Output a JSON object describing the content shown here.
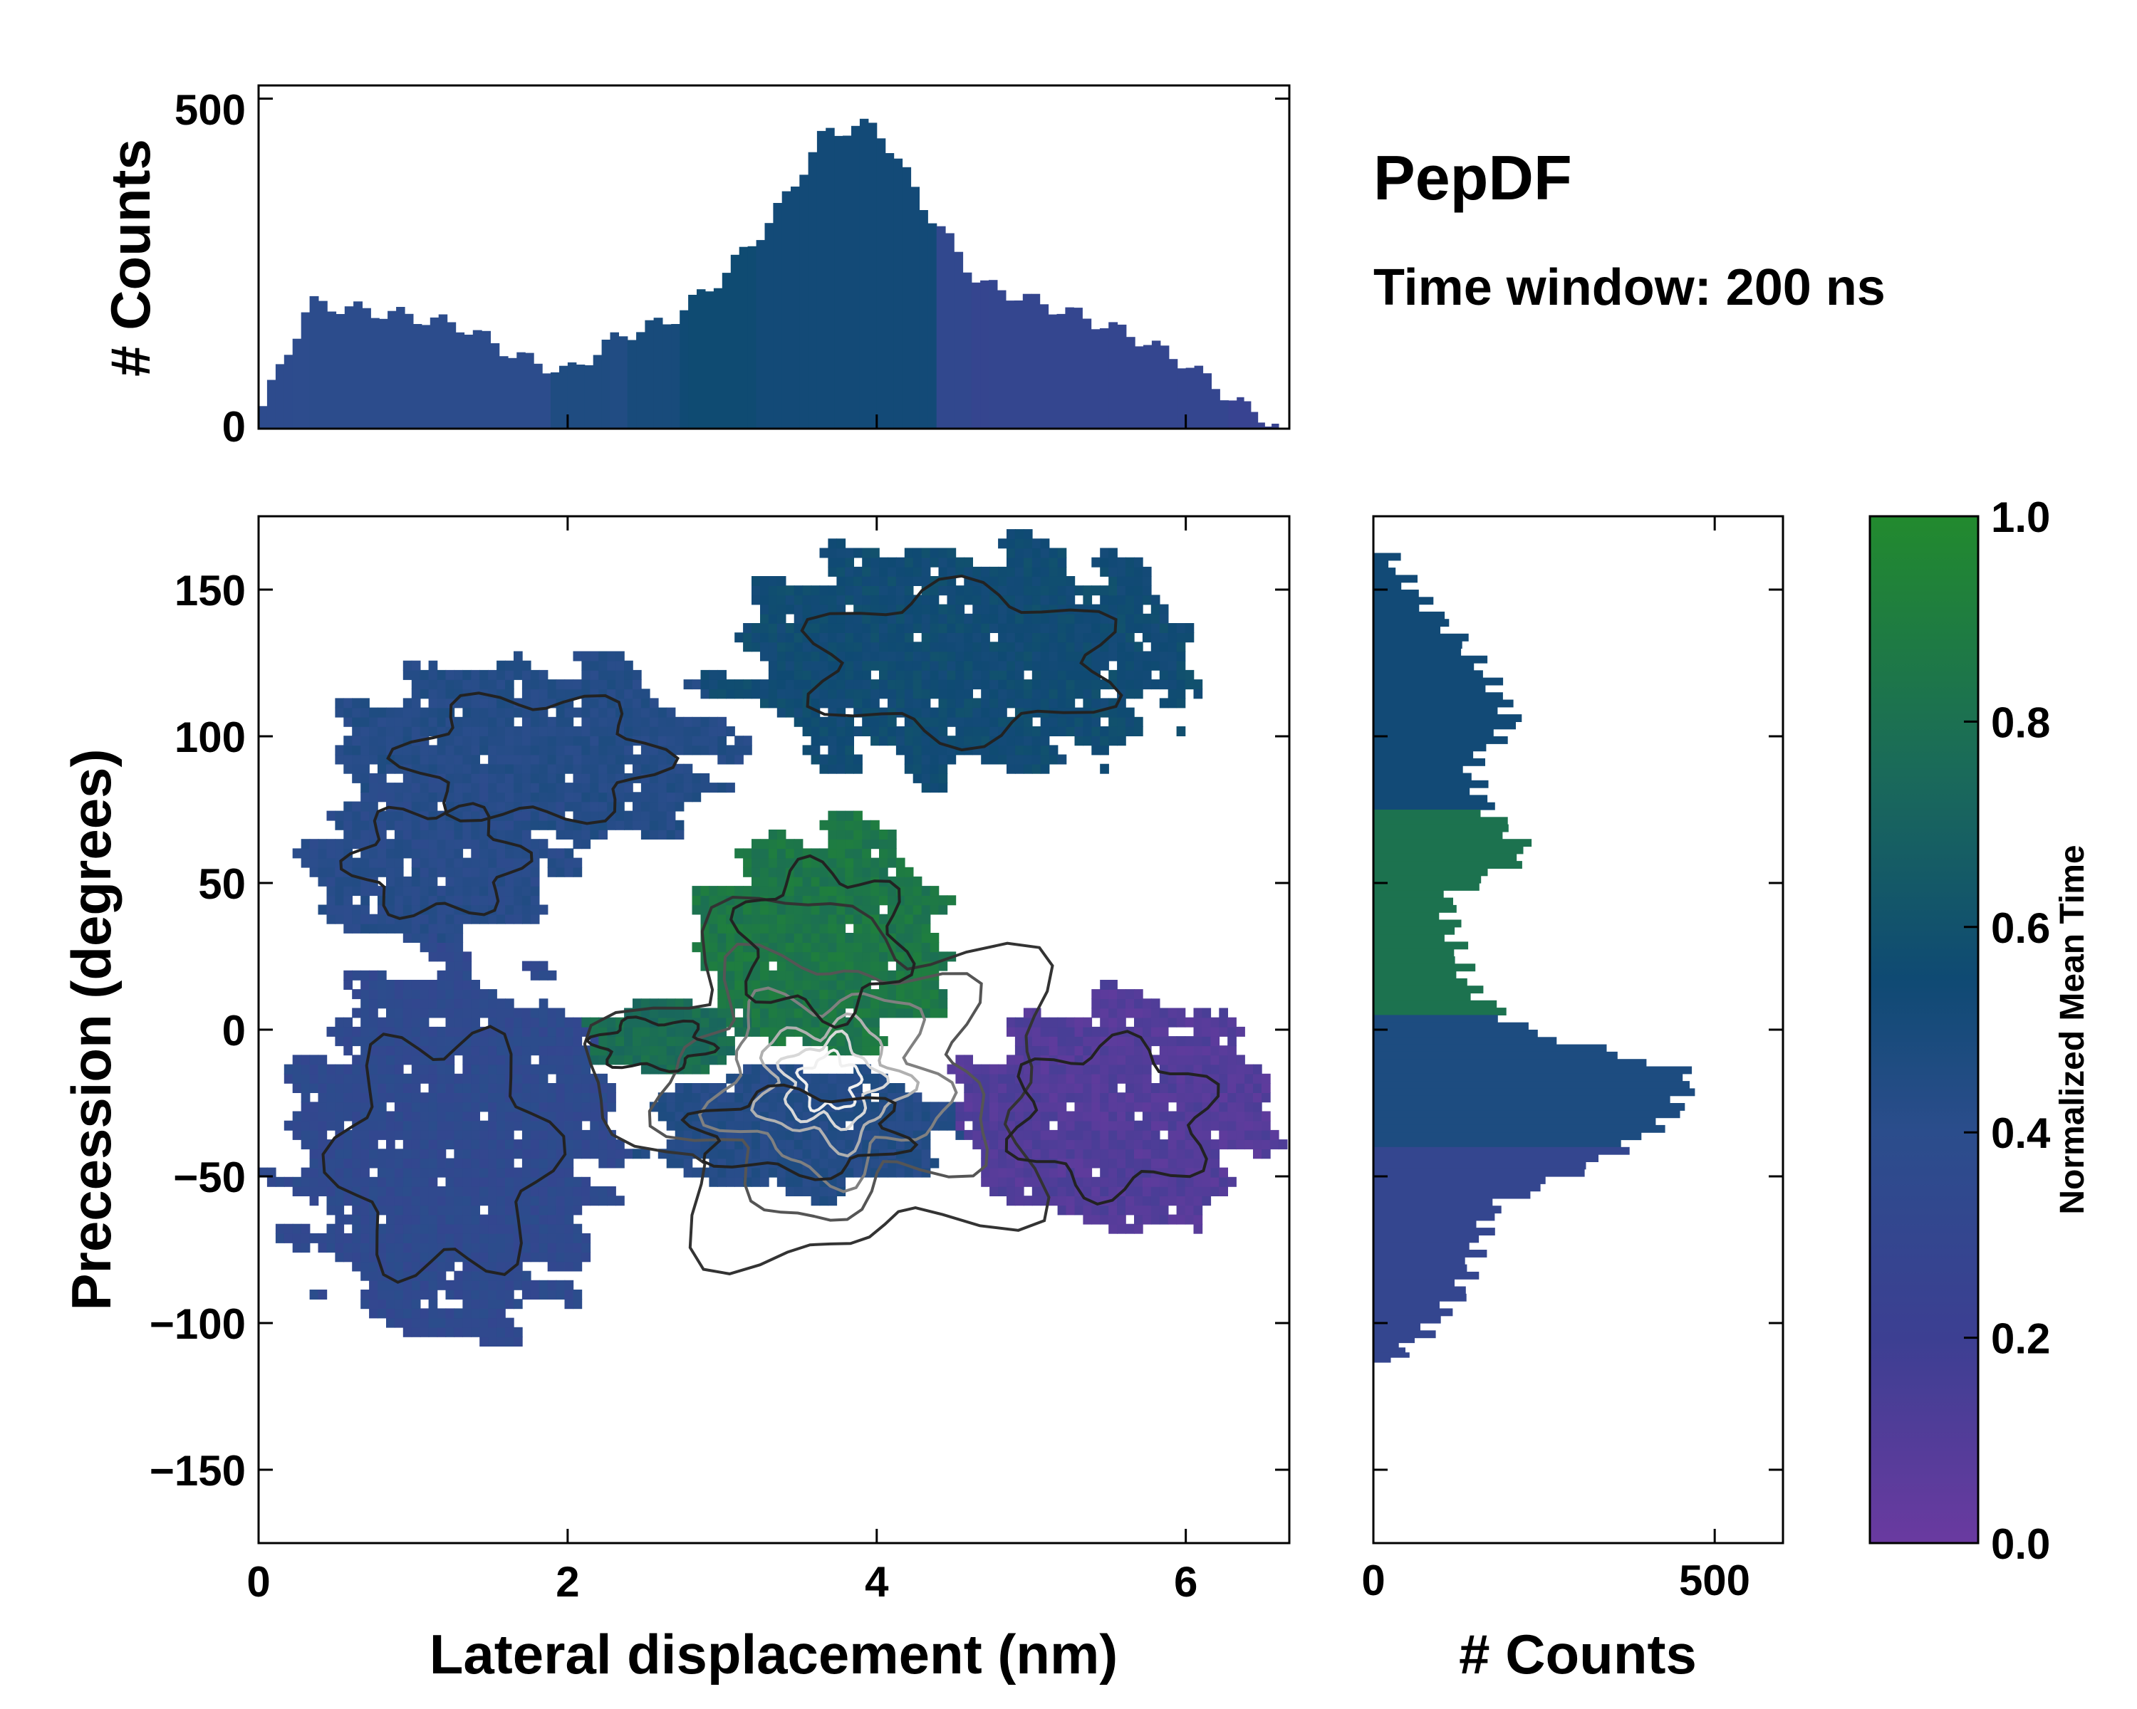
{
  "chart_data": {
    "type": "heatmap",
    "title": "PepDF",
    "subtitle": "Time window: 200 ns",
    "main": {
      "xlabel": "Lateral displacement (nm)",
      "ylabel": "Precession (degrees)",
      "xlim": [
        0,
        6.67
      ],
      "ylim": [
        -175,
        175
      ],
      "xticks": [
        0,
        2,
        4,
        6
      ],
      "xticklabels": [
        "0",
        "2",
        "4",
        "6"
      ],
      "yticks": [
        -150,
        -100,
        -50,
        0,
        50,
        100,
        150
      ],
      "yticklabels": [
        "−150",
        "−100",
        "−50",
        "0",
        "50",
        "100",
        "150"
      ],
      "regions": [
        {
          "name": "upper-left",
          "x": [
            0.35,
            3.2
          ],
          "y": [
            55,
            130
          ],
          "value": 0.45
        },
        {
          "name": "left-middle",
          "x": [
            0.2,
            2.1
          ],
          "y": [
            25,
            90
          ],
          "value": 0.42
        },
        {
          "name": "upper-right",
          "x": [
            2.8,
            6.3
          ],
          "y": [
            80,
            170
          ],
          "value": 0.6
        },
        {
          "name": "center-green",
          "x": [
            2.7,
            4.6
          ],
          "y": [
            -15,
            75
          ],
          "value": 0.88
        },
        {
          "name": "center-green-left",
          "x": [
            1.9,
            3.2
          ],
          "y": [
            -20,
            10
          ],
          "value": 0.82
        },
        {
          "name": "lower-left",
          "x": [
            0.0,
            2.4
          ],
          "y": [
            -115,
            30
          ],
          "value": 0.35
        },
        {
          "name": "lower-center",
          "x": [
            2.3,
            4.7
          ],
          "y": [
            -60,
            -10
          ],
          "value": 0.45
        },
        {
          "name": "right-purple",
          "x": [
            4.4,
            6.65
          ],
          "y": [
            -75,
            15
          ],
          "value": 0.1
        }
      ],
      "density_peak": {
        "x": 3.7,
        "y": -18
      }
    },
    "x_hist": {
      "ylabel": "# Counts",
      "ylim": [
        0,
        520
      ],
      "yticks": [
        0,
        500
      ],
      "yticklabels": [
        "0",
        "500"
      ],
      "bins_x": [
        0.0,
        0.33,
        0.67,
        1.0,
        1.33,
        1.67,
        2.0,
        2.33,
        2.67,
        3.0,
        3.33,
        3.67,
        4.0,
        4.33,
        4.67,
        5.0,
        5.33,
        5.67,
        6.0,
        6.33,
        6.6
      ],
      "counts": [
        20,
        190,
        180,
        170,
        155,
        110,
        85,
        140,
        165,
        230,
        320,
        450,
        460,
        330,
        220,
        195,
        170,
        140,
        100,
        40,
        5
      ]
    },
    "y_hist": {
      "xlabel": "# Counts",
      "xlim": [
        0,
        600
      ],
      "xticks": [
        0,
        500
      ],
      "xticklabels": [
        "0",
        "500"
      ],
      "bins_y": [
        165,
        150,
        135,
        120,
        105,
        90,
        75,
        60,
        45,
        30,
        15,
        0,
        -15,
        -30,
        -45,
        -60,
        -75,
        -90,
        -105,
        -115
      ],
      "counts": [
        10,
        60,
        120,
        170,
        210,
        140,
        170,
        230,
        110,
        120,
        140,
        220,
        470,
        440,
        330,
        180,
        150,
        130,
        70,
        10
      ]
    },
    "colorbar": {
      "label": "Normalized Mean Time",
      "range": [
        0,
        1
      ],
      "ticks": [
        0.0,
        0.2,
        0.4,
        0.6,
        0.8,
        1.0
      ],
      "ticklabels": [
        "0.0",
        "0.2",
        "0.4",
        "0.6",
        "0.8",
        "1.0"
      ],
      "colors": [
        "#6a3aa0",
        "#3c3f92",
        "#2b4d8c",
        "#0f4a73",
        "#1a6a5a",
        "#228a2e"
      ]
    }
  }
}
